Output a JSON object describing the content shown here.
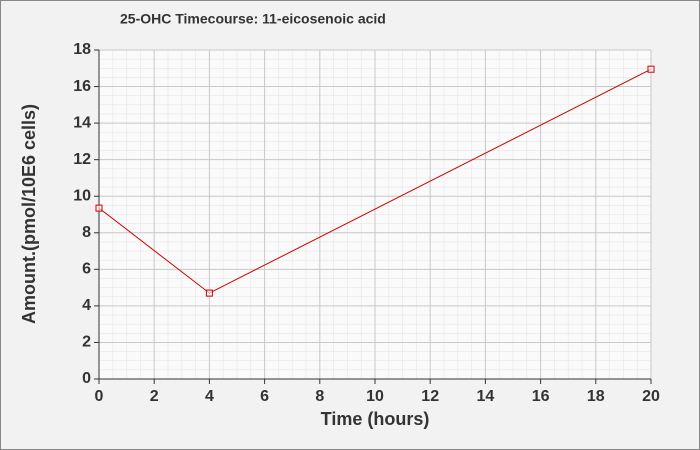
{
  "chart_data": {
    "type": "line",
    "title": "25-OHC Timecourse: 11-eicosenoic acid",
    "x_label": "Time (hours)",
    "y_label": "Amount.(pmol/10E6 cells)",
    "x": [
      0,
      4,
      20
    ],
    "series": [
      {
        "name": "11-eicosenoic acid",
        "color": "#cc0000",
        "values": [
          9.35,
          4.7,
          16.95
        ]
      }
    ],
    "xlim": [
      0,
      20
    ],
    "xticks": [
      0,
      2,
      4,
      6,
      8,
      10,
      12,
      14,
      16,
      18,
      20
    ],
    "ylim": [
      0,
      18
    ],
    "yticks": [
      0,
      2,
      4,
      6,
      8,
      10,
      12,
      14,
      16,
      18
    ],
    "grid": true
  }
}
